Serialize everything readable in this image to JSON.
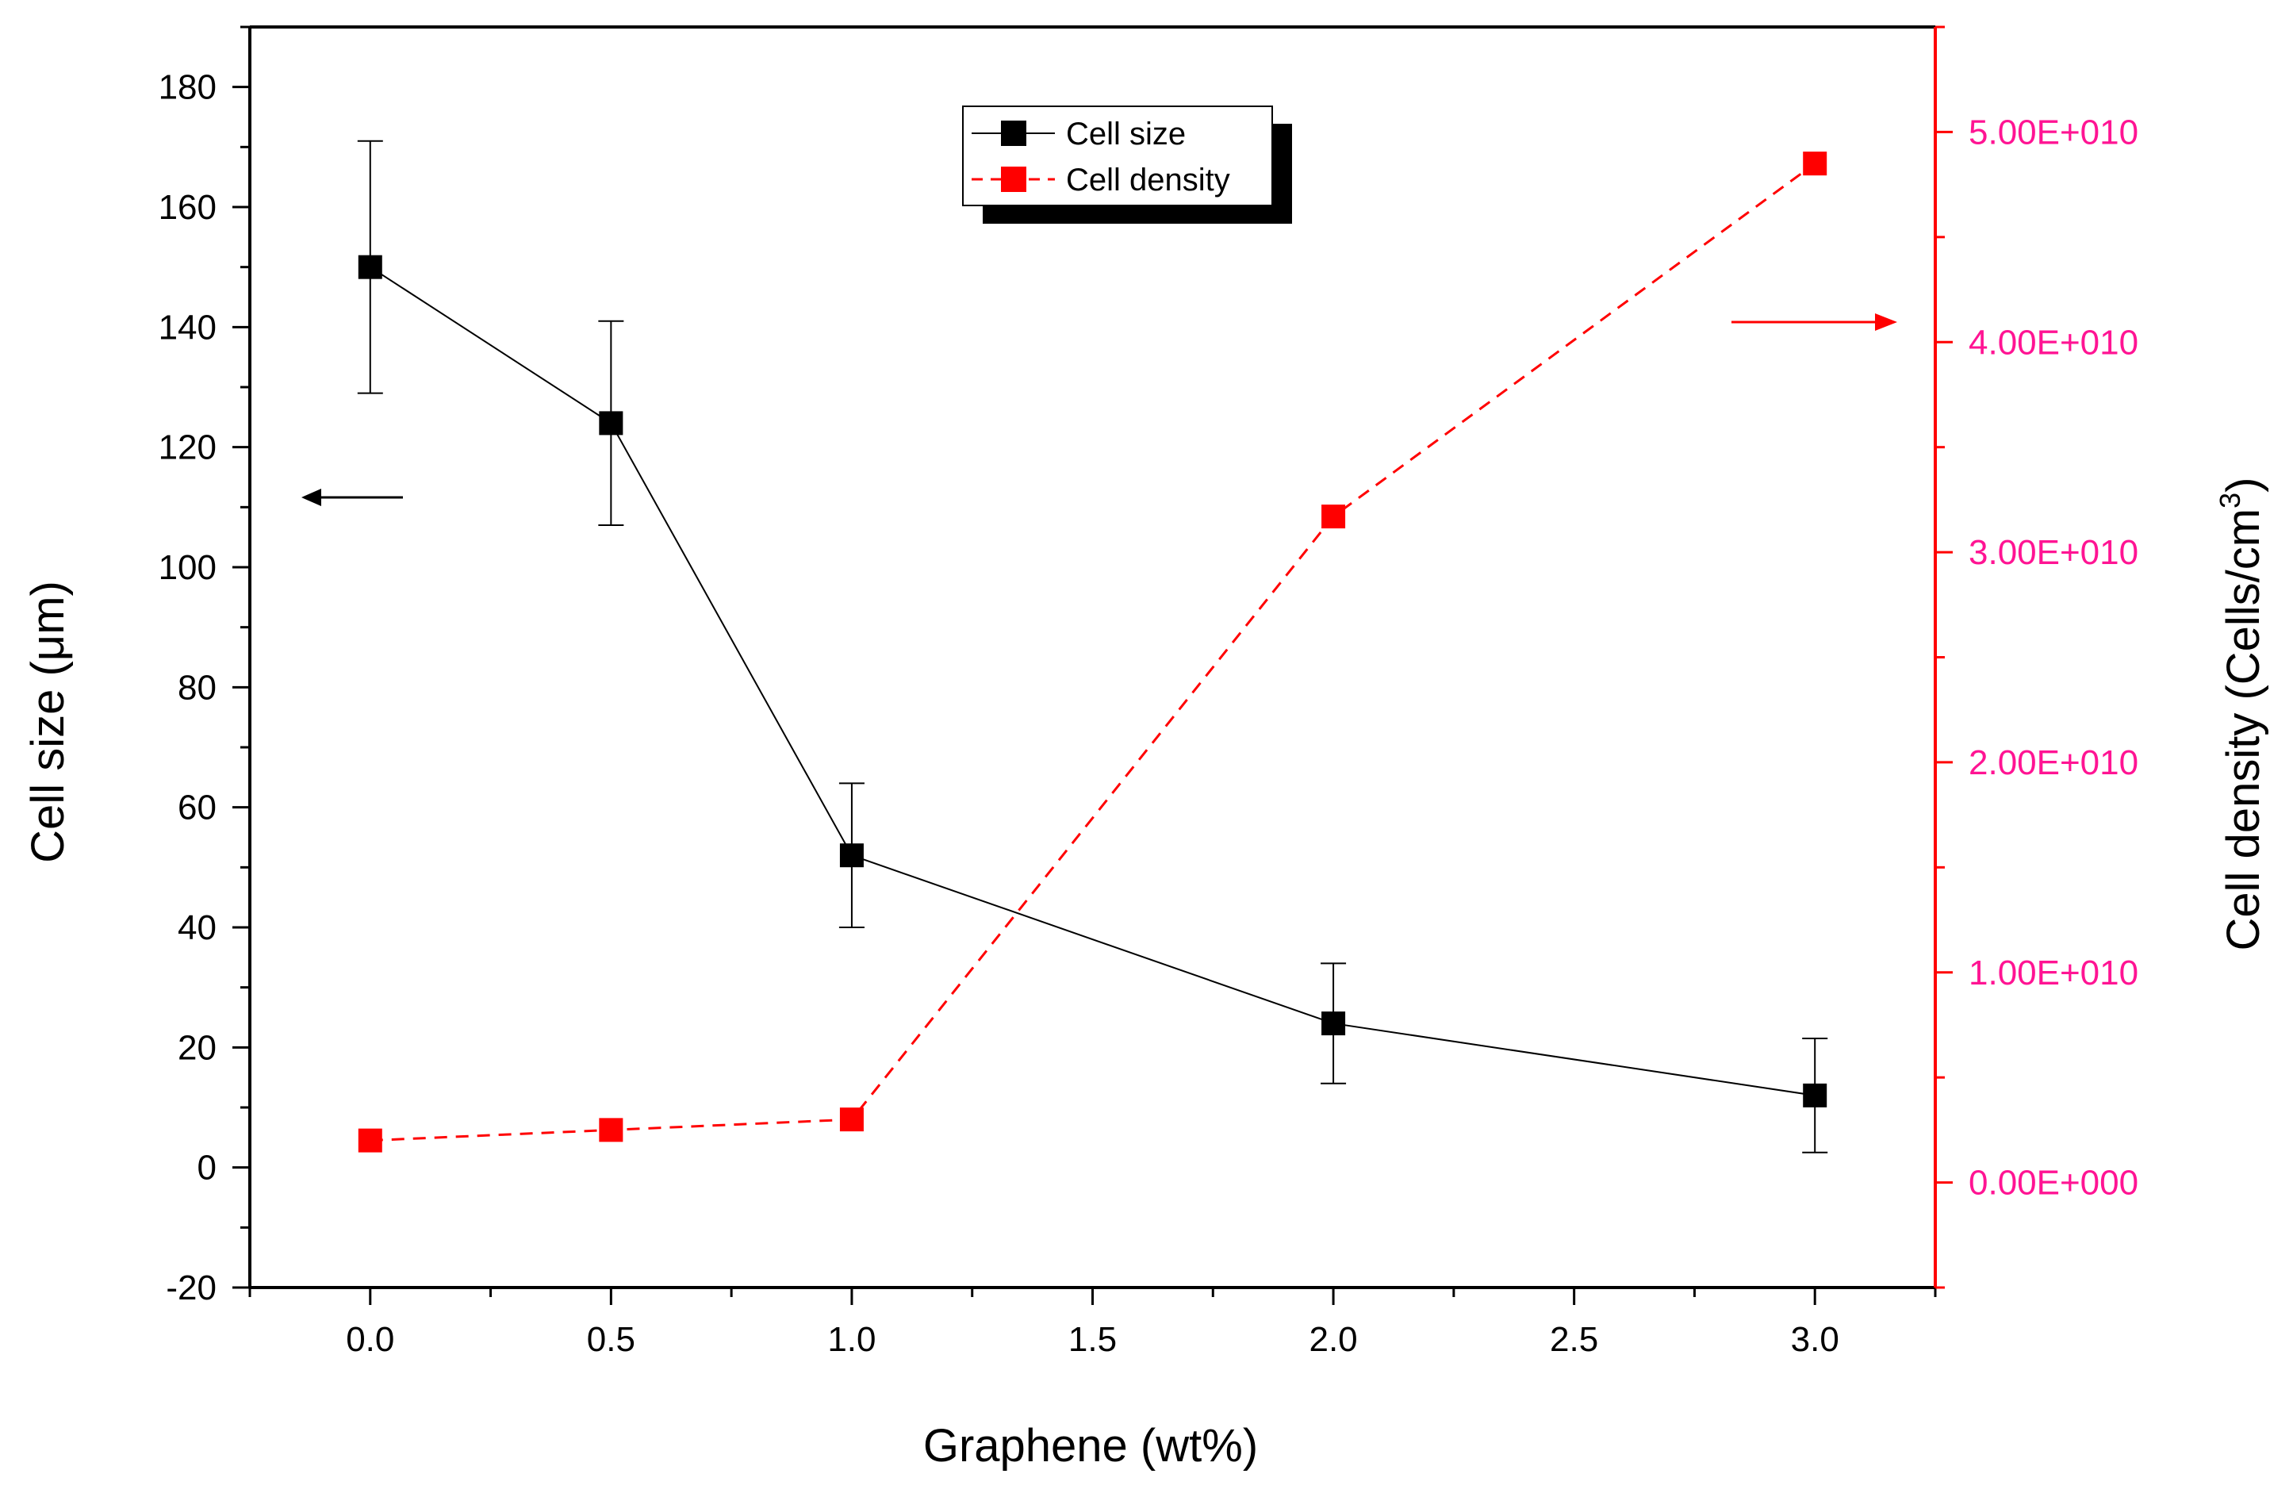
{
  "chart_data": {
    "type": "line",
    "xlabel": "Graphene (wt%)",
    "ylabel": "Cell size (μm)",
    "y2label_main": "Cell density (Cells/cm",
    "y2label_sup": "3",
    "y2label_close": ")",
    "xlim": [
      -0.25,
      3.25
    ],
    "ylim": [
      -20,
      190
    ],
    "y2lim": [
      -5000000000.0,
      55000000000.0
    ],
    "x_ticks": [
      0.0,
      0.5,
      1.0,
      1.5,
      2.0,
      2.5,
      3.0
    ],
    "x_tick_labels": [
      "0.0",
      "0.5",
      "1.0",
      "1.5",
      "2.0",
      "2.5",
      "3.0"
    ],
    "y_ticks": [
      -20,
      0,
      20,
      40,
      60,
      80,
      100,
      120,
      140,
      160,
      180
    ],
    "y_tick_labels": [
      "-20",
      "0",
      "20",
      "40",
      "60",
      "80",
      "100",
      "120",
      "140",
      "160",
      "180"
    ],
    "y2_ticks": [
      0,
      10000000000.0,
      20000000000.0,
      30000000000.0,
      40000000000.0,
      50000000000.0
    ],
    "y2_tick_labels": [
      "0.00E+000",
      "1.00E+010",
      "2.00E+010",
      "3.00E+010",
      "4.00E+010",
      "5.00E+010"
    ],
    "legend_position": "top-center",
    "series": [
      {
        "name": "Cell size",
        "axis": "left",
        "style": "solid",
        "color": "#000000",
        "x": [
          0.0,
          0.5,
          1.0,
          2.0,
          3.0
        ],
        "values": [
          150,
          124,
          52,
          24,
          12
        ],
        "error_low": [
          129,
          107,
          40,
          14,
          2.5
        ],
        "error_high": [
          171,
          141,
          64,
          34,
          21.5
        ]
      },
      {
        "name": "Cell density",
        "axis": "right",
        "style": "dashed",
        "color": "#ff0000",
        "x": [
          0.0,
          0.5,
          1.0,
          2.0,
          3.0
        ],
        "values": [
          2000000000.0,
          2500000000.0,
          3000000000.0,
          31700000000.0,
          48500000000.0
        ]
      }
    ],
    "right_axis_color": "#ff0000",
    "right_tick_label_color": "#ff1493"
  }
}
